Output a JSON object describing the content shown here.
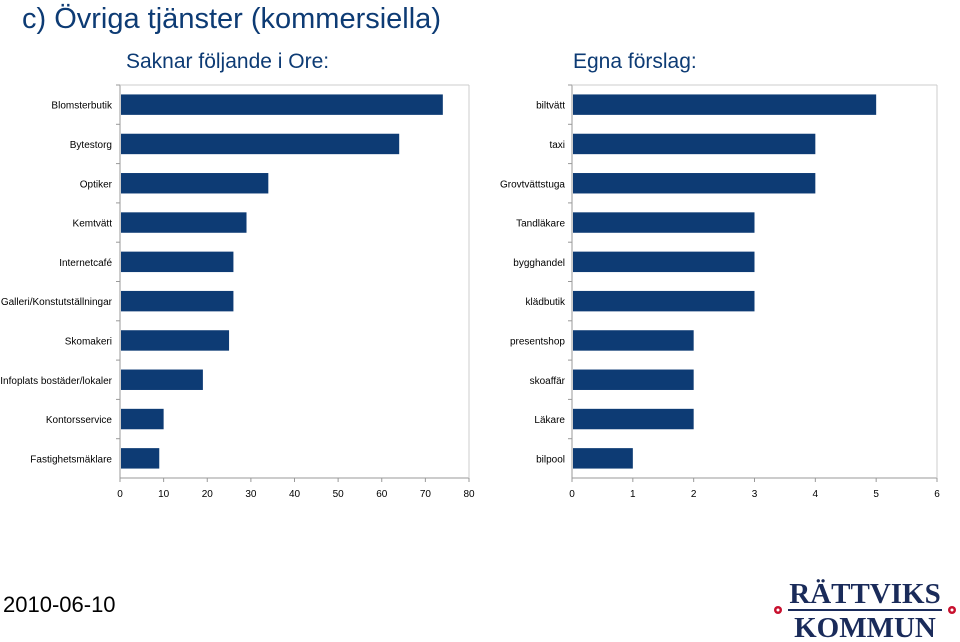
{
  "page": {
    "title": "c) Övriga tjänster (kommersiella)",
    "date": "2010-06-10",
    "logo": {
      "line1": "RÄTTVIKS",
      "line2": "KOMMUN",
      "color": "#1a2b5a",
      "star_color": "#c8102e"
    }
  },
  "colors": {
    "bar": "#0d3b74",
    "title": "#0d3b74",
    "grid": "#cccccc"
  },
  "chart_data": [
    {
      "type": "bar",
      "orientation": "horizontal",
      "title": "Saknar följande i Ore:",
      "categories": [
        "Blomsterbutik",
        "Bytestorg",
        "Optiker",
        "Kemtvätt",
        "Internetcafé",
        "Galleri/Konstutställningar",
        "Skomakeri",
        "Infoplats bostäder/lokaler",
        "Kontorsservice",
        "Fastighetsmäklare"
      ],
      "values": [
        74,
        64,
        34,
        29,
        26,
        26,
        25,
        19,
        10,
        9
      ],
      "xlim": [
        0,
        80
      ],
      "xticks": [
        0,
        10,
        20,
        30,
        40,
        50,
        60,
        70,
        80
      ],
      "xlabel": "",
      "ylabel": ""
    },
    {
      "type": "bar",
      "orientation": "horizontal",
      "title": "Egna förslag:",
      "categories": [
        "biltvätt",
        "taxi",
        "Grovtvättstuga",
        "Tandläkare",
        "bygghandel",
        "klädbutik",
        "presentshop",
        "skoaffär",
        "Läkare",
        "bilpool"
      ],
      "values": [
        5,
        4,
        4,
        3,
        3,
        3,
        2,
        2,
        2,
        1
      ],
      "xlim": [
        0,
        6
      ],
      "xticks": [
        0,
        1,
        2,
        3,
        4,
        5,
        6
      ],
      "xlabel": "",
      "ylabel": ""
    }
  ]
}
